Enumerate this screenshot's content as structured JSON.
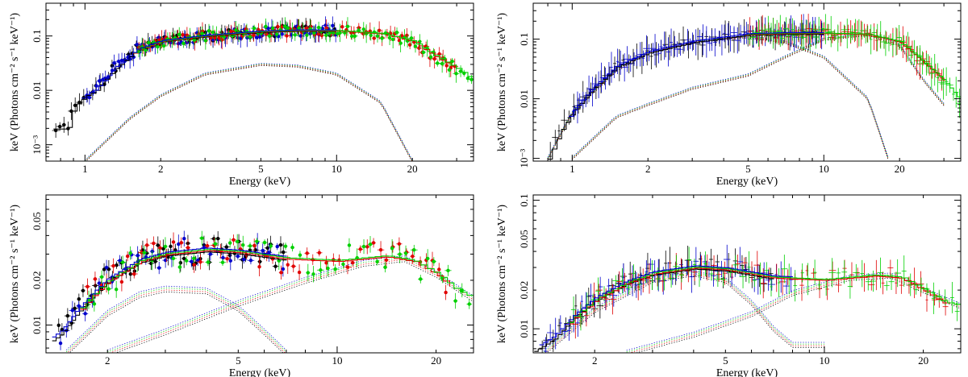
{
  "figure": {
    "description_label": "Four-panel X-ray spectra figure"
  },
  "colors": {
    "black": "#000000",
    "red": "#e00000",
    "green": "#00d000",
    "blue": "#0000cc"
  },
  "chart_data": [
    {
      "id": "top-left",
      "type": "scatter",
      "style": "filled-points",
      "xlabel": "Energy (keV)",
      "ylabel": "keV (Photons cm⁻² s⁻¹ keV⁻¹)",
      "xscale": "log",
      "yscale": "log",
      "xlim": [
        0.7,
        35
      ],
      "ylim": [
        0.0005,
        0.4
      ],
      "xticks": [
        {
          "v": 1,
          "t": "1"
        },
        {
          "v": 2,
          "t": "2"
        },
        {
          "v": 5,
          "t": "5"
        },
        {
          "v": 10,
          "t": "10"
        },
        {
          "v": 20,
          "t": "20"
        }
      ],
      "yticks": [
        {
          "v": 0.001,
          "t": "10⁻³"
        },
        {
          "v": 0.01,
          "t": "0.01"
        },
        {
          "v": 0.1,
          "t": "0.1"
        }
      ],
      "series": [
        {
          "name": "black",
          "color": "black",
          "xrange": [
            0.75,
            10
          ],
          "n": 70
        },
        {
          "name": "blue",
          "color": "blue",
          "xrange": [
            1.0,
            10
          ],
          "n": 80
        },
        {
          "name": "red",
          "color": "red",
          "xrange": [
            1.6,
            30
          ],
          "n": 80
        },
        {
          "name": "green",
          "color": "green",
          "xrange": [
            1.6,
            35
          ],
          "n": 90
        }
      ],
      "model": {
        "total": [
          [
            0.75,
            0.002
          ],
          [
            0.85,
            0.002
          ],
          [
            0.9,
            0.005
          ],
          [
            1.0,
            0.008
          ],
          [
            1.1,
            0.01
          ],
          [
            1.3,
            0.025
          ],
          [
            1.6,
            0.055
          ],
          [
            2,
            0.08
          ],
          [
            3,
            0.1
          ],
          [
            5,
            0.12
          ],
          [
            7,
            0.125
          ],
          [
            10,
            0.125
          ],
          [
            15,
            0.11
          ],
          [
            20,
            0.08
          ],
          [
            25,
            0.04
          ],
          [
            30,
            0.025
          ],
          [
            35,
            0.015
          ]
        ],
        "component_a": [
          [
            1.0,
            0.0005
          ],
          [
            1.5,
            0.003
          ],
          [
            2,
            0.008
          ],
          [
            3,
            0.02
          ],
          [
            5,
            0.03
          ],
          [
            7,
            0.028
          ],
          [
            10,
            0.02
          ],
          [
            15,
            0.006
          ],
          [
            20,
            0.0005
          ]
        ]
      }
    },
    {
      "id": "top-right",
      "type": "scatter",
      "style": "error-crosses",
      "xlabel": "Energy (keV)",
      "ylabel": "keV (Photons cm⁻² s⁻¹ keV⁻¹)",
      "xscale": "log",
      "yscale": "log",
      "xlim": [
        0.7,
        35
      ],
      "ylim": [
        0.0009,
        0.4
      ],
      "xticks": [
        {
          "v": 1,
          "t": "1"
        },
        {
          "v": 2,
          "t": "2"
        },
        {
          "v": 5,
          "t": "5"
        },
        {
          "v": 10,
          "t": "10"
        },
        {
          "v": 20,
          "t": "20"
        }
      ],
      "yticks": [
        {
          "v": 0.001,
          "t": "10⁻³"
        },
        {
          "v": 0.01,
          "t": "0.01"
        },
        {
          "v": 0.1,
          "t": "0.1"
        }
      ],
      "series": [
        {
          "name": "black",
          "color": "black",
          "xrange": [
            0.8,
            10
          ],
          "n": 60
        },
        {
          "name": "blue",
          "color": "blue",
          "xrange": [
            1.0,
            10
          ],
          "n": 80
        },
        {
          "name": "red",
          "color": "red",
          "xrange": [
            5,
            30
          ],
          "n": 60
        },
        {
          "name": "green",
          "color": "green",
          "xrange": [
            5,
            35
          ],
          "n": 70
        }
      ],
      "model": {
        "total": [
          [
            0.8,
            0.001
          ],
          [
            0.9,
            0.003
          ],
          [
            1.0,
            0.006
          ],
          [
            1.2,
            0.015
          ],
          [
            1.5,
            0.035
          ],
          [
            2,
            0.06
          ],
          [
            3,
            0.09
          ],
          [
            5,
            0.12
          ],
          [
            7,
            0.125
          ],
          [
            10,
            0.125
          ],
          [
            15,
            0.12
          ],
          [
            20,
            0.09
          ],
          [
            25,
            0.04
          ],
          [
            30,
            0.02
          ],
          [
            35,
            0.009
          ]
        ],
        "component_a": [
          [
            0.8,
            0.001
          ],
          [
            1,
            0.006
          ],
          [
            1.5,
            0.03
          ],
          [
            2,
            0.06
          ],
          [
            3,
            0.09
          ],
          [
            5,
            0.11
          ],
          [
            7,
            0.09
          ],
          [
            10,
            0.05
          ],
          [
            15,
            0.01
          ],
          [
            18,
            0.001
          ]
        ],
        "component_b": [
          [
            1.0,
            0.001
          ],
          [
            1.5,
            0.005
          ],
          [
            2,
            0.008
          ],
          [
            3,
            0.015
          ],
          [
            5,
            0.025
          ],
          [
            7,
            0.05
          ],
          [
            10,
            0.1
          ],
          [
            15,
            0.12
          ],
          [
            20,
            0.08
          ],
          [
            25,
            0.02
          ],
          [
            30,
            0.008
          ]
        ]
      }
    },
    {
      "id": "bottom-left",
      "type": "scatter",
      "style": "filled-points",
      "xlabel": "Energy (keV)",
      "ylabel": "keV (Photons cm⁻² s⁻¹ keV⁻¹)",
      "xscale": "log",
      "yscale": "log",
      "xlim": [
        1.3,
        26
      ],
      "ylim": [
        0.0065,
        0.075
      ],
      "xticks": [
        {
          "v": 2,
          "t": "2"
        },
        {
          "v": 5,
          "t": "5"
        },
        {
          "v": 10,
          "t": "10"
        },
        {
          "v": 20,
          "t": "20"
        }
      ],
      "yticks": [
        {
          "v": 0.01,
          "t": "0.01"
        },
        {
          "v": 0.02,
          "t": "0.02"
        },
        {
          "v": 0.05,
          "t": "0.05"
        }
      ],
      "series": [
        {
          "name": "black",
          "color": "black",
          "xrange": [
            1.4,
            7
          ],
          "n": 55
        },
        {
          "name": "blue",
          "color": "blue",
          "xrange": [
            1.4,
            7
          ],
          "n": 35
        },
        {
          "name": "red",
          "color": "red",
          "xrange": [
            1.7,
            22
          ],
          "n": 55
        },
        {
          "name": "green",
          "color": "green",
          "xrange": [
            1.7,
            26
          ],
          "n": 55
        }
      ],
      "model": {
        "total": [
          [
            1.3,
            0.0075
          ],
          [
            1.45,
            0.009
          ],
          [
            1.6,
            0.012
          ],
          [
            1.8,
            0.016
          ],
          [
            2,
            0.02
          ],
          [
            2.5,
            0.027
          ],
          [
            3,
            0.03
          ],
          [
            4,
            0.032
          ],
          [
            5,
            0.031
          ],
          [
            7,
            0.028
          ],
          [
            10,
            0.027
          ],
          [
            14,
            0.029
          ],
          [
            17,
            0.027
          ],
          [
            20,
            0.022
          ],
          [
            23,
            0.017
          ],
          [
            26,
            0.015
          ]
        ],
        "component_a": [
          [
            1.5,
            0.0065
          ],
          [
            2,
            0.012
          ],
          [
            2.5,
            0.016
          ],
          [
            3,
            0.0175
          ],
          [
            4,
            0.017
          ],
          [
            5,
            0.013
          ],
          [
            6,
            0.009
          ],
          [
            7,
            0.0065
          ]
        ],
        "component_b": [
          [
            2,
            0.0065
          ],
          [
            3,
            0.009
          ],
          [
            5,
            0.014
          ],
          [
            8,
            0.02
          ],
          [
            12,
            0.026
          ],
          [
            16,
            0.028
          ],
          [
            20,
            0.022
          ],
          [
            26,
            0.015
          ]
        ]
      }
    },
    {
      "id": "bottom-right",
      "type": "scatter",
      "style": "error-crosses",
      "xlabel": "Energy (keV)",
      "ylabel": "keV (Photons cm⁻² s⁻¹ keV⁻¹)",
      "xscale": "log",
      "yscale": "log",
      "xlim": [
        1.3,
        26
      ],
      "ylim": [
        0.0065,
        0.11
      ],
      "xticks": [
        {
          "v": 2,
          "t": "2"
        },
        {
          "v": 5,
          "t": "5"
        },
        {
          "v": 10,
          "t": "10"
        },
        {
          "v": 20,
          "t": "20"
        }
      ],
      "yticks": [
        {
          "v": 0.01,
          "t": "0.01"
        },
        {
          "v": 0.02,
          "t": "0.02"
        },
        {
          "v": 0.05,
          "t": "0.05"
        },
        {
          "v": 0.1,
          "t": "0.1"
        }
      ],
      "series": [
        {
          "name": "black",
          "color": "black",
          "xrange": [
            1.35,
            7
          ],
          "n": 40
        },
        {
          "name": "blue",
          "color": "blue",
          "xrange": [
            1.4,
            8
          ],
          "n": 55
        },
        {
          "name": "red",
          "color": "red",
          "xrange": [
            1.7,
            24
          ],
          "n": 60
        },
        {
          "name": "green",
          "color": "green",
          "xrange": [
            1.7,
            26
          ],
          "n": 65
        }
      ],
      "model": {
        "total": [
          [
            1.3,
            0.0068
          ],
          [
            1.5,
            0.0085
          ],
          [
            1.7,
            0.012
          ],
          [
            2,
            0.017
          ],
          [
            2.5,
            0.023
          ],
          [
            3,
            0.027
          ],
          [
            4,
            0.03
          ],
          [
            5,
            0.029
          ],
          [
            7,
            0.025
          ],
          [
            10,
            0.024
          ],
          [
            14,
            0.026
          ],
          [
            17,
            0.025
          ],
          [
            20,
            0.02
          ],
          [
            23,
            0.016
          ],
          [
            26,
            0.015
          ]
        ],
        "component_a": [
          [
            1.4,
            0.0065
          ],
          [
            2,
            0.014
          ],
          [
            3,
            0.024
          ],
          [
            4,
            0.027
          ],
          [
            5,
            0.024
          ],
          [
            6,
            0.016
          ],
          [
            7,
            0.01
          ],
          [
            8,
            0.0075
          ],
          [
            10,
            0.0075
          ]
        ],
        "component_b": [
          [
            2.5,
            0.0065
          ],
          [
            4,
            0.009
          ],
          [
            6,
            0.013
          ],
          [
            8,
            0.019
          ],
          [
            12,
            0.025
          ],
          [
            16,
            0.026
          ],
          [
            20,
            0.02
          ],
          [
            26,
            0.015
          ]
        ]
      }
    }
  ]
}
